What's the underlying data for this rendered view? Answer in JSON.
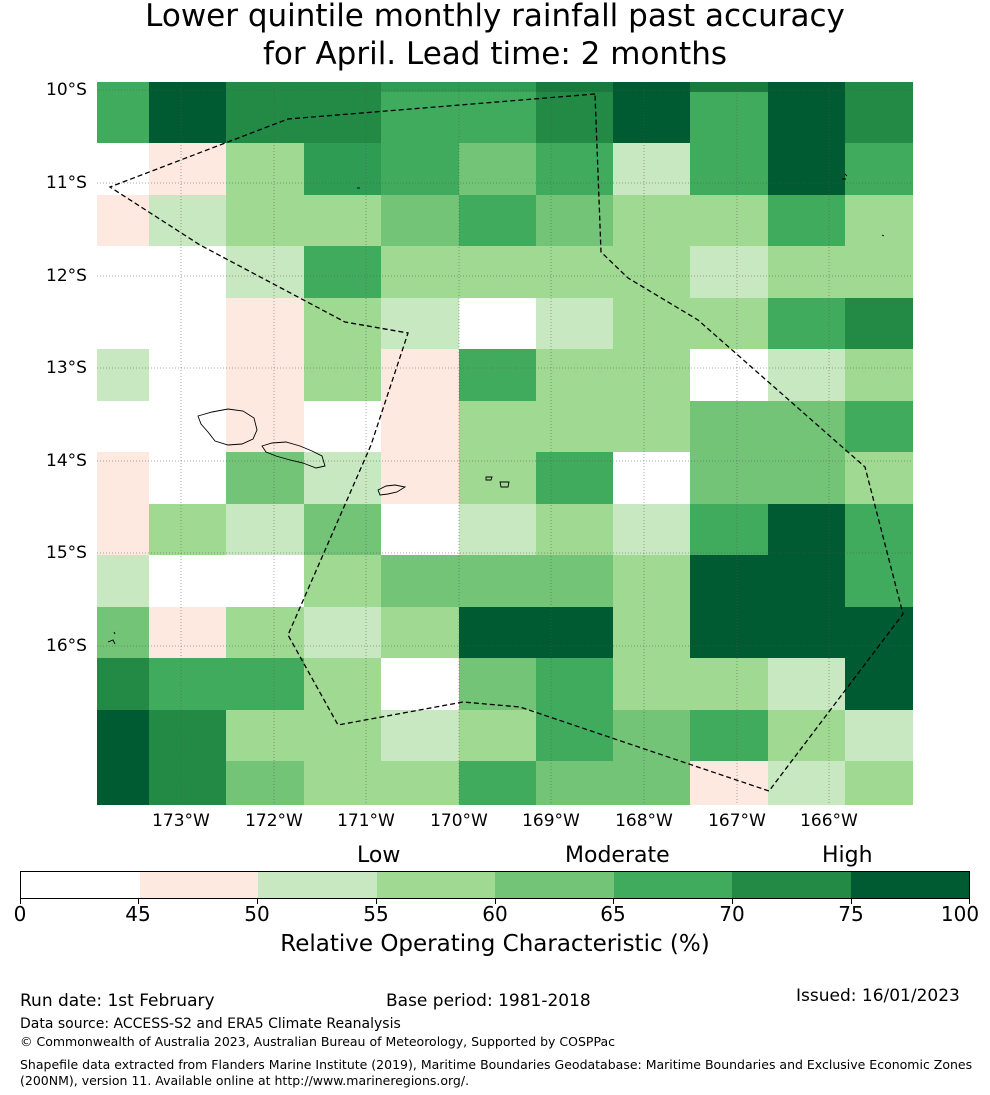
{
  "title": {
    "line1": "Lower quintile monthly rainfall past accuracy",
    "line2": "for April. Lead time: 2 months"
  },
  "map": {
    "latitude_labels": [
      "10°S",
      "11°S",
      "12°S",
      "13°S",
      "14°S",
      "15°S",
      "16°S"
    ],
    "longitude_labels": [
      "173°W",
      "172°W",
      "171°W",
      "170°W",
      "169°W",
      "168°W",
      "167°W",
      "166°W"
    ],
    "grid_roc_percent_classes": [
      [
        9,
        13,
        11,
        11,
        8,
        8,
        10,
        13,
        10,
        13,
        11
      ],
      [
        9,
        13,
        11,
        11,
        9,
        9,
        11,
        13,
        9,
        13,
        11
      ],
      [
        1,
        4,
        6,
        8,
        9,
        7,
        9,
        5,
        9,
        13,
        9
      ],
      [
        4,
        5,
        6,
        6,
        7,
        9,
        7,
        6,
        6,
        9,
        6
      ],
      [
        1,
        1,
        5,
        9,
        6,
        6,
        6,
        6,
        5,
        6,
        6
      ],
      [
        1,
        1,
        4,
        6,
        5,
        1,
        5,
        6,
        6,
        9,
        11
      ],
      [
        5,
        1,
        4,
        6,
        4,
        9,
        6,
        6,
        1,
        5,
        6
      ],
      [
        1,
        1,
        4,
        1,
        4,
        6,
        6,
        6,
        7,
        7,
        9
      ],
      [
        4,
        1,
        7,
        5,
        4,
        6,
        9,
        1,
        7,
        7,
        6
      ],
      [
        4,
        6,
        5,
        7,
        1,
        5,
        6,
        5,
        9,
        13,
        9
      ],
      [
        5,
        1,
        1,
        6,
        7,
        7,
        7,
        6,
        13,
        13,
        9
      ],
      [
        7,
        4,
        6,
        5,
        6,
        13,
        13,
        6,
        13,
        13,
        13
      ],
      [
        11,
        9,
        9,
        6,
        1,
        7,
        9,
        6,
        6,
        5,
        13
      ],
      [
        13,
        11,
        6,
        6,
        5,
        6,
        9,
        7,
        9,
        6,
        5
      ],
      [
        13,
        11,
        7,
        6,
        6,
        9,
        7,
        7,
        4,
        5,
        6
      ]
    ]
  },
  "colorbar": {
    "categories": [
      "Low",
      "Moderate",
      "High"
    ],
    "ticks": [
      "0",
      "45",
      "50",
      "55",
      "60",
      "65",
      "70",
      "75",
      "100"
    ],
    "colors": [
      "#ffffff",
      "#fde9e0",
      "#c7e8c0",
      "#a0d991",
      "#73c476",
      "#41ab5d",
      "#228a45",
      "#005a32"
    ],
    "label": "Relative Operating Characteristic (%)"
  },
  "footer": {
    "run_date": "Run date: 1st February",
    "base_period": "Base period: 1981-2018",
    "issued": "Issued: 16/01/2023",
    "data_source": "Data source: ACCESS-S2 and ERA5 Climate Reanalysis",
    "copyright": "© Commonwealth of Australia 2023, Australian Bureau of Meteorology, Supported by COSPPac",
    "shapefile_line1": "Shapefile data extracted from Flanders Marine Institute (2019), Maritime Boundaries Geodatabase: Maritime Boundaries and Exclusive Economic Zones",
    "shapefile_line2": "(200NM), version 11. Available online at http://www.marineregions.org/."
  }
}
